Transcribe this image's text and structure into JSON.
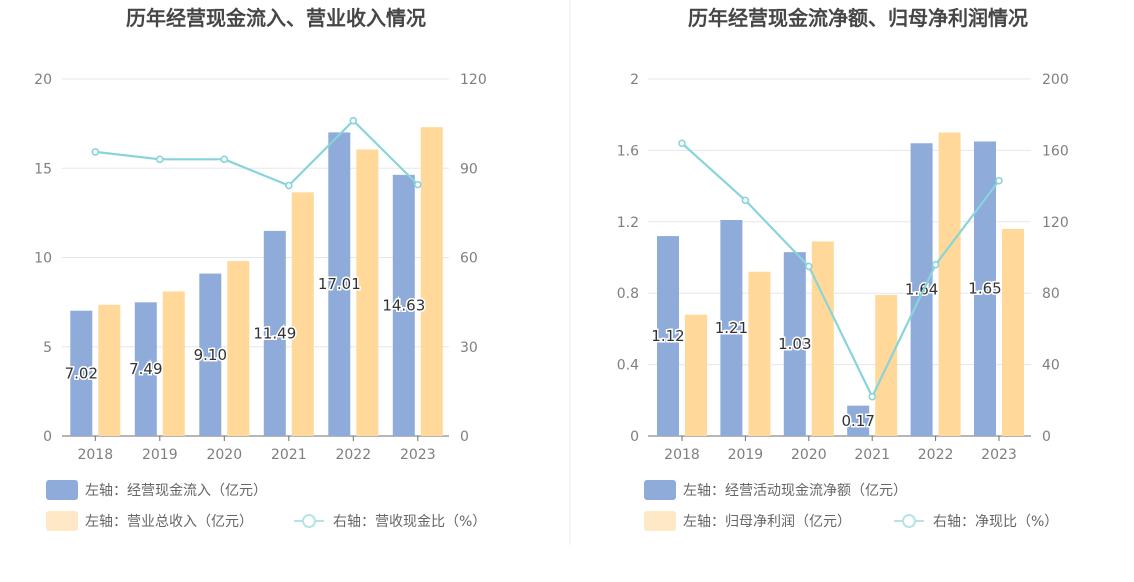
{
  "chart_data": [
    {
      "type": "bar",
      "title": "历年经营现金流入、营业收入情况",
      "categories": [
        "2018",
        "2019",
        "2020",
        "2021",
        "2022",
        "2023"
      ],
      "series": [
        {
          "name": "左轴：经营现金流入（亿元）",
          "axis": "left",
          "color": "#8eabda",
          "values": [
            7.02,
            7.49,
            9.1,
            11.49,
            17.01,
            14.63
          ],
          "labels": [
            "7.02",
            "7.49",
            "9.10",
            "11.49",
            "17.01",
            "14.63"
          ]
        },
        {
          "name": "左轴：营业总收入（亿元）",
          "axis": "left",
          "color": "#ffd89a",
          "values": [
            7.35,
            8.1,
            9.8,
            13.65,
            16.05,
            17.3
          ]
        },
        {
          "name": "右轴：营收现金比（%）",
          "axis": "right",
          "type": "line",
          "color": "#88d4da",
          "values": [
            95.5,
            93.0,
            93.0,
            84.2,
            106.0,
            84.5
          ]
        }
      ],
      "left_axis": {
        "min": 0,
        "max": 20,
        "ticks": [
          "0",
          "5",
          "10",
          "15",
          "20"
        ]
      },
      "right_axis": {
        "min": 0,
        "max": 120,
        "ticks": [
          "0",
          "30",
          "60",
          "90",
          "120"
        ]
      }
    },
    {
      "type": "bar",
      "title": "历年经营现金流净额、归母净利润情况",
      "categories": [
        "2018",
        "2019",
        "2020",
        "2021",
        "2022",
        "2023"
      ],
      "series": [
        {
          "name": "左轴：经营活动现金流净额（亿元）",
          "axis": "left",
          "color": "#8eabda",
          "values": [
            1.12,
            1.21,
            1.03,
            0.17,
            1.64,
            1.65
          ],
          "labels": [
            "1.12",
            "1.21",
            "1.03",
            "0.17",
            "1.64",
            "1.65"
          ]
        },
        {
          "name": "左轴：归母净利润（亿元）",
          "axis": "left",
          "color": "#ffd89a",
          "values": [
            0.68,
            0.92,
            1.09,
            0.79,
            1.7,
            1.16
          ]
        },
        {
          "name": "右轴：净现比（%）",
          "axis": "right",
          "type": "line",
          "color": "#88d4da",
          "values": [
            164,
            132,
            95,
            22,
            96,
            143
          ]
        }
      ],
      "left_axis": {
        "min": 0,
        "max": 2,
        "ticks": [
          "0",
          "0.4",
          "0.8",
          "1.2",
          "1.6",
          "2"
        ]
      },
      "right_axis": {
        "min": 0,
        "max": 200,
        "ticks": [
          "0",
          "40",
          "80",
          "120",
          "160",
          "200"
        ]
      }
    }
  ]
}
